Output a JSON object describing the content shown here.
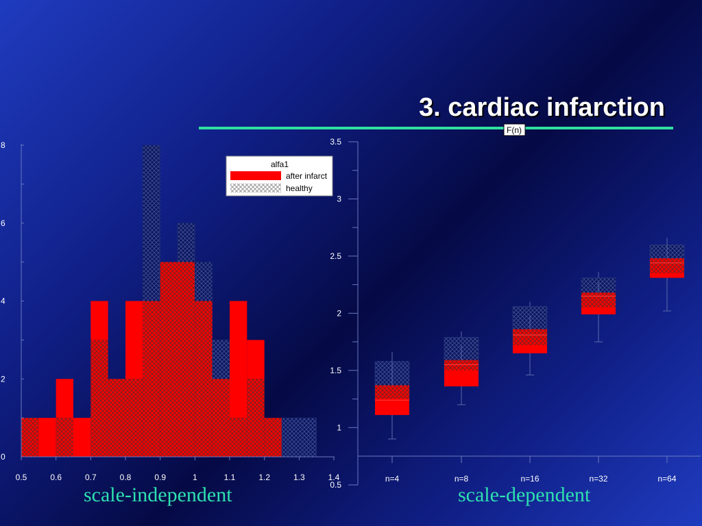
{
  "slide": {
    "title": "3. cardiac infarction",
    "caption_left": "scale-independent",
    "caption_right": "scale-dependent"
  },
  "colors": {
    "accent_rule": "#2fe0a0",
    "after_infarct": "#ff0000",
    "healthy": "#9a9a9a"
  },
  "chart_data": [
    {
      "type": "bar",
      "subtype": "histogram",
      "x_ticks": [
        "0.5",
        "0.6",
        "0.7",
        "0.8",
        "0.9",
        "1",
        "1.1",
        "1.2",
        "1.3",
        "1.4"
      ],
      "y_ticks": [
        "0",
        "2",
        "4",
        "6",
        "8"
      ],
      "xlim": [
        0.5,
        1.4
      ],
      "ylim": [
        0,
        8
      ],
      "bin_width": 0.05,
      "bin_starts": [
        0.5,
        0.55,
        0.6,
        0.65,
        0.7,
        0.75,
        0.8,
        0.85,
        0.9,
        0.95,
        1.0,
        1.05,
        1.1,
        1.15,
        1.2,
        1.25,
        1.3
      ],
      "legend": {
        "title": "alfa1",
        "entries": [
          "after infarct",
          "healthy"
        ],
        "position": "top-right"
      },
      "series": [
        {
          "name": "after infarct",
          "values": [
            1,
            1,
            2,
            1,
            4,
            2,
            4,
            4,
            5,
            5,
            4,
            2,
            4,
            3,
            1,
            0,
            0
          ]
        },
        {
          "name": "healthy",
          "values": [
            1,
            0,
            1,
            0,
            3,
            2,
            2,
            8,
            5,
            6,
            5,
            3,
            1,
            2,
            1,
            1,
            1
          ]
        }
      ]
    },
    {
      "type": "box",
      "y_axis_label": "F(n)",
      "categories": [
        "n=4",
        "n=8",
        "n=16",
        "n=32",
        "n=64"
      ],
      "y_ticks": [
        "0.5",
        "1",
        "1.5",
        "2",
        "2.5",
        "3",
        "3.5"
      ],
      "ylim": [
        0.75,
        3.5
      ],
      "series": [
        {
          "name": "after infarct",
          "boxes": [
            {
              "whisker_low": 0.9,
              "q1": 1.11,
              "median": 1.24,
              "q3": 1.37,
              "whisker_high": 1.58
            },
            {
              "whisker_low": 1.2,
              "q1": 1.36,
              "median": 1.55,
              "q3": 1.59,
              "whisker_high": 1.72
            },
            {
              "whisker_low": 1.46,
              "q1": 1.65,
              "median": 1.81,
              "q3": 1.86,
              "whisker_high": 1.98
            },
            {
              "whisker_low": 1.75,
              "q1": 1.99,
              "median": 2.15,
              "q3": 2.18,
              "whisker_high": 2.27
            },
            {
              "whisker_low": 2.02,
              "q1": 2.31,
              "median": 2.44,
              "q3": 2.48,
              "whisker_high": 2.6
            }
          ]
        },
        {
          "name": "healthy",
          "boxes": [
            {
              "whisker_low": 1.1,
              "q1": 1.25,
              "median": 1.38,
              "q3": 1.58,
              "whisker_high": 1.66
            },
            {
              "whisker_low": 1.35,
              "q1": 1.5,
              "median": 1.6,
              "q3": 1.79,
              "whisker_high": 1.84
            },
            {
              "whisker_low": 1.6,
              "q1": 1.72,
              "median": 1.86,
              "q3": 2.06,
              "whisker_high": 2.1
            },
            {
              "whisker_low": 1.9,
              "q1": 2.05,
              "median": 2.18,
              "q3": 2.31,
              "whisker_high": 2.36
            },
            {
              "whisker_low": 2.2,
              "q1": 2.35,
              "median": 2.48,
              "q3": 2.6,
              "whisker_high": 2.66
            }
          ]
        }
      ]
    }
  ]
}
